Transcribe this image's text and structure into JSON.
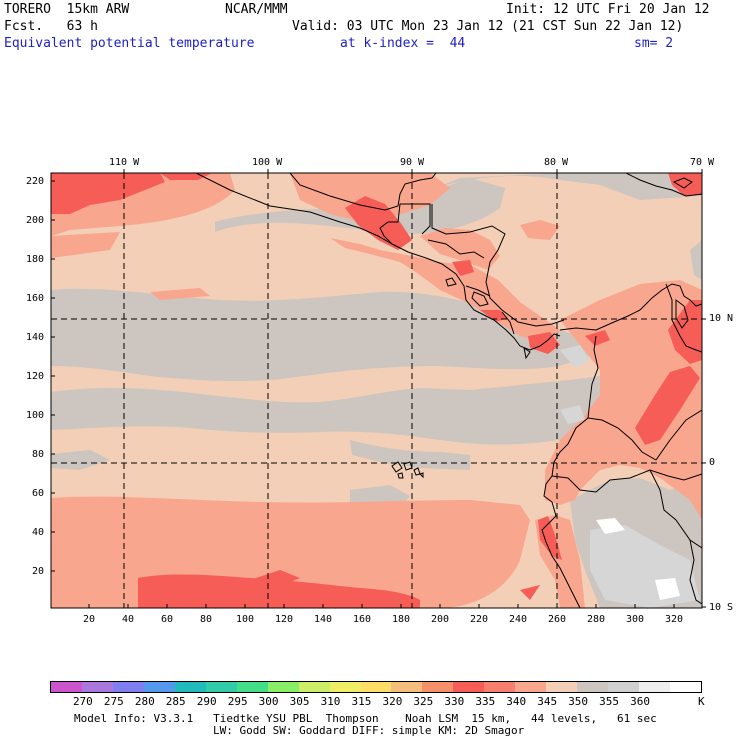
{
  "header": {
    "model": "TORERO  15km ARW",
    "center": "NCAR/MMM",
    "init": "Init: 12 UTC Fri 20 Jan 12",
    "fcst": "Fcst.   63 h",
    "valid": "Valid: 03 UTC Mon 23 Jan 12 (21 CST Sun 22 Jan 12)",
    "field": "Equivalent potential temperature",
    "level": "at k-index =  44",
    "smooth": "sm= 2"
  },
  "map": {
    "lon_labels": [
      "110 W",
      "100 W",
      "90 W",
      "80 W",
      "70 W"
    ],
    "lat_labels": [
      "10 N",
      "0",
      "10 S"
    ],
    "y_ticks": [
      "220",
      "200",
      "180",
      "160",
      "140",
      "120",
      "100",
      "80",
      "60",
      "40",
      "20"
    ],
    "x_ticks": [
      "20",
      "40",
      "60",
      "80",
      "100",
      "120",
      "140",
      "160",
      "180",
      "200",
      "220",
      "240",
      "260",
      "280",
      "300",
      "320"
    ],
    "colors": {
      "background_ocean_tan": "#f2cfb6",
      "gray_high": "#cdc5bf",
      "salmon": "#f9a68e",
      "red": "#f65d57",
      "light_gray": "#d6d6d6",
      "white": "#ffffff"
    }
  },
  "colorbar": {
    "colors": [
      "#cc55cc",
      "#aa77dd",
      "#7f7fef",
      "#5599ee",
      "#22bbbb",
      "#33ccaa",
      "#44dd88",
      "#88ee66",
      "#ccee66",
      "#eeee66",
      "#ffdd66",
      "#f5be7a",
      "#f4906a",
      "#f65d57",
      "#f77f70",
      "#f9a68e",
      "#f2cfb6",
      "#cdc5bf",
      "#d0d0d0",
      "#eeeeee",
      "#ffffff"
    ],
    "labels": [
      "270",
      "275",
      "280",
      "285",
      "290",
      "295",
      "300",
      "305",
      "310",
      "315",
      "320",
      "325",
      "330",
      "335",
      "340",
      "345",
      "350",
      "355",
      "360"
    ],
    "unit": "K"
  },
  "footer": {
    "line1": "Model Info: V3.3.1   Tiedtke YSU PBL  Thompson    Noah LSM  15 km,   44 levels,   61 sec",
    "line2": "LW: Godd SW: Goddard DIFF: simple KM: 2D Smagor"
  }
}
